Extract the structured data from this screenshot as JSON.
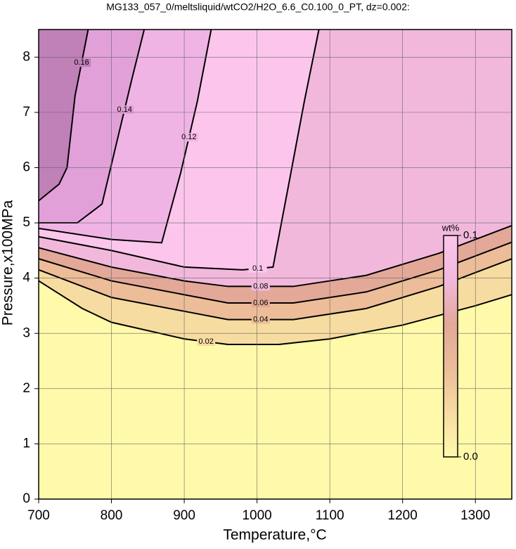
{
  "chart_data": {
    "type": "contour",
    "title": "MG133_057_0/meltsliquid/wtCO2/H2O_6.6_C0.100_0_PT, dz=0.002:",
    "x_label": "Temperature,°C",
    "y_label": "Pressure,x100MPa",
    "xlim": [
      700,
      1350
    ],
    "ylim": [
      0,
      8.5
    ],
    "xticks": [
      700,
      800,
      900,
      1000,
      1100,
      1200,
      1300
    ],
    "yticks": [
      0,
      1,
      2,
      3,
      4,
      5,
      6,
      7,
      8
    ],
    "grid": true,
    "background": "#fffaaa",
    "series": [
      {
        "level": 0.02,
        "color": "#f6dca0",
        "x": [
          700,
          760,
          800,
          900,
          960,
          1030,
          1100,
          1200,
          1300,
          1350
        ],
        "y": [
          3.95,
          3.45,
          3.2,
          2.9,
          2.8,
          2.8,
          2.9,
          3.15,
          3.5,
          3.7
        ]
      },
      {
        "level": 0.04,
        "color": "#ecbd98",
        "x": [
          700,
          800,
          900,
          960,
          1050,
          1150,
          1250,
          1350
        ],
        "y": [
          4.15,
          3.65,
          3.4,
          3.25,
          3.25,
          3.45,
          3.85,
          4.35
        ]
      },
      {
        "level": 0.06,
        "color": "#e3a898",
        "x": [
          700,
          800,
          900,
          960,
          1050,
          1150,
          1250,
          1350
        ],
        "y": [
          4.35,
          3.95,
          3.7,
          3.55,
          3.55,
          3.75,
          4.15,
          4.65
        ]
      },
      {
        "level": 0.08,
        "color": "#f2b8dc",
        "x": [
          700,
          800,
          900,
          960,
          1050,
          1150,
          1250,
          1350
        ],
        "y": [
          4.55,
          4.2,
          3.95,
          3.85,
          3.85,
          4.05,
          4.45,
          4.95
        ]
      },
      {
        "level": 0.1,
        "color": "#fcc6ec",
        "x": [
          700,
          800,
          900,
          980,
          1022,
          1045,
          1065,
          1085
        ],
        "y": [
          4.75,
          4.5,
          4.2,
          4.15,
          4.2,
          5.8,
          7.2,
          8.5
        ]
      },
      {
        "level": 0.12,
        "color": "#f0b4e4",
        "x": [
          700,
          800,
          869,
          895,
          918,
          937
        ],
        "y": [
          4.9,
          4.7,
          4.64,
          5.9,
          7.2,
          8.5
        ]
      },
      {
        "level": 0.14,
        "color": "#e2a0d8",
        "x": [
          700,
          753,
          787,
          808,
          828,
          845
        ],
        "y": [
          5.0,
          5.0,
          5.34,
          6.5,
          7.6,
          8.5
        ]
      },
      {
        "level": 0.16,
        "color": "#c080b8",
        "x": [
          700,
          728,
          739,
          750,
          768
        ],
        "y": [
          5.4,
          5.7,
          6.0,
          7.3,
          8.5
        ]
      }
    ],
    "colorbar": {
      "label": "wt%",
      "ticks": [
        {
          "value": 0,
          "label": "0.0"
        },
        0.1
      ]
    }
  }
}
